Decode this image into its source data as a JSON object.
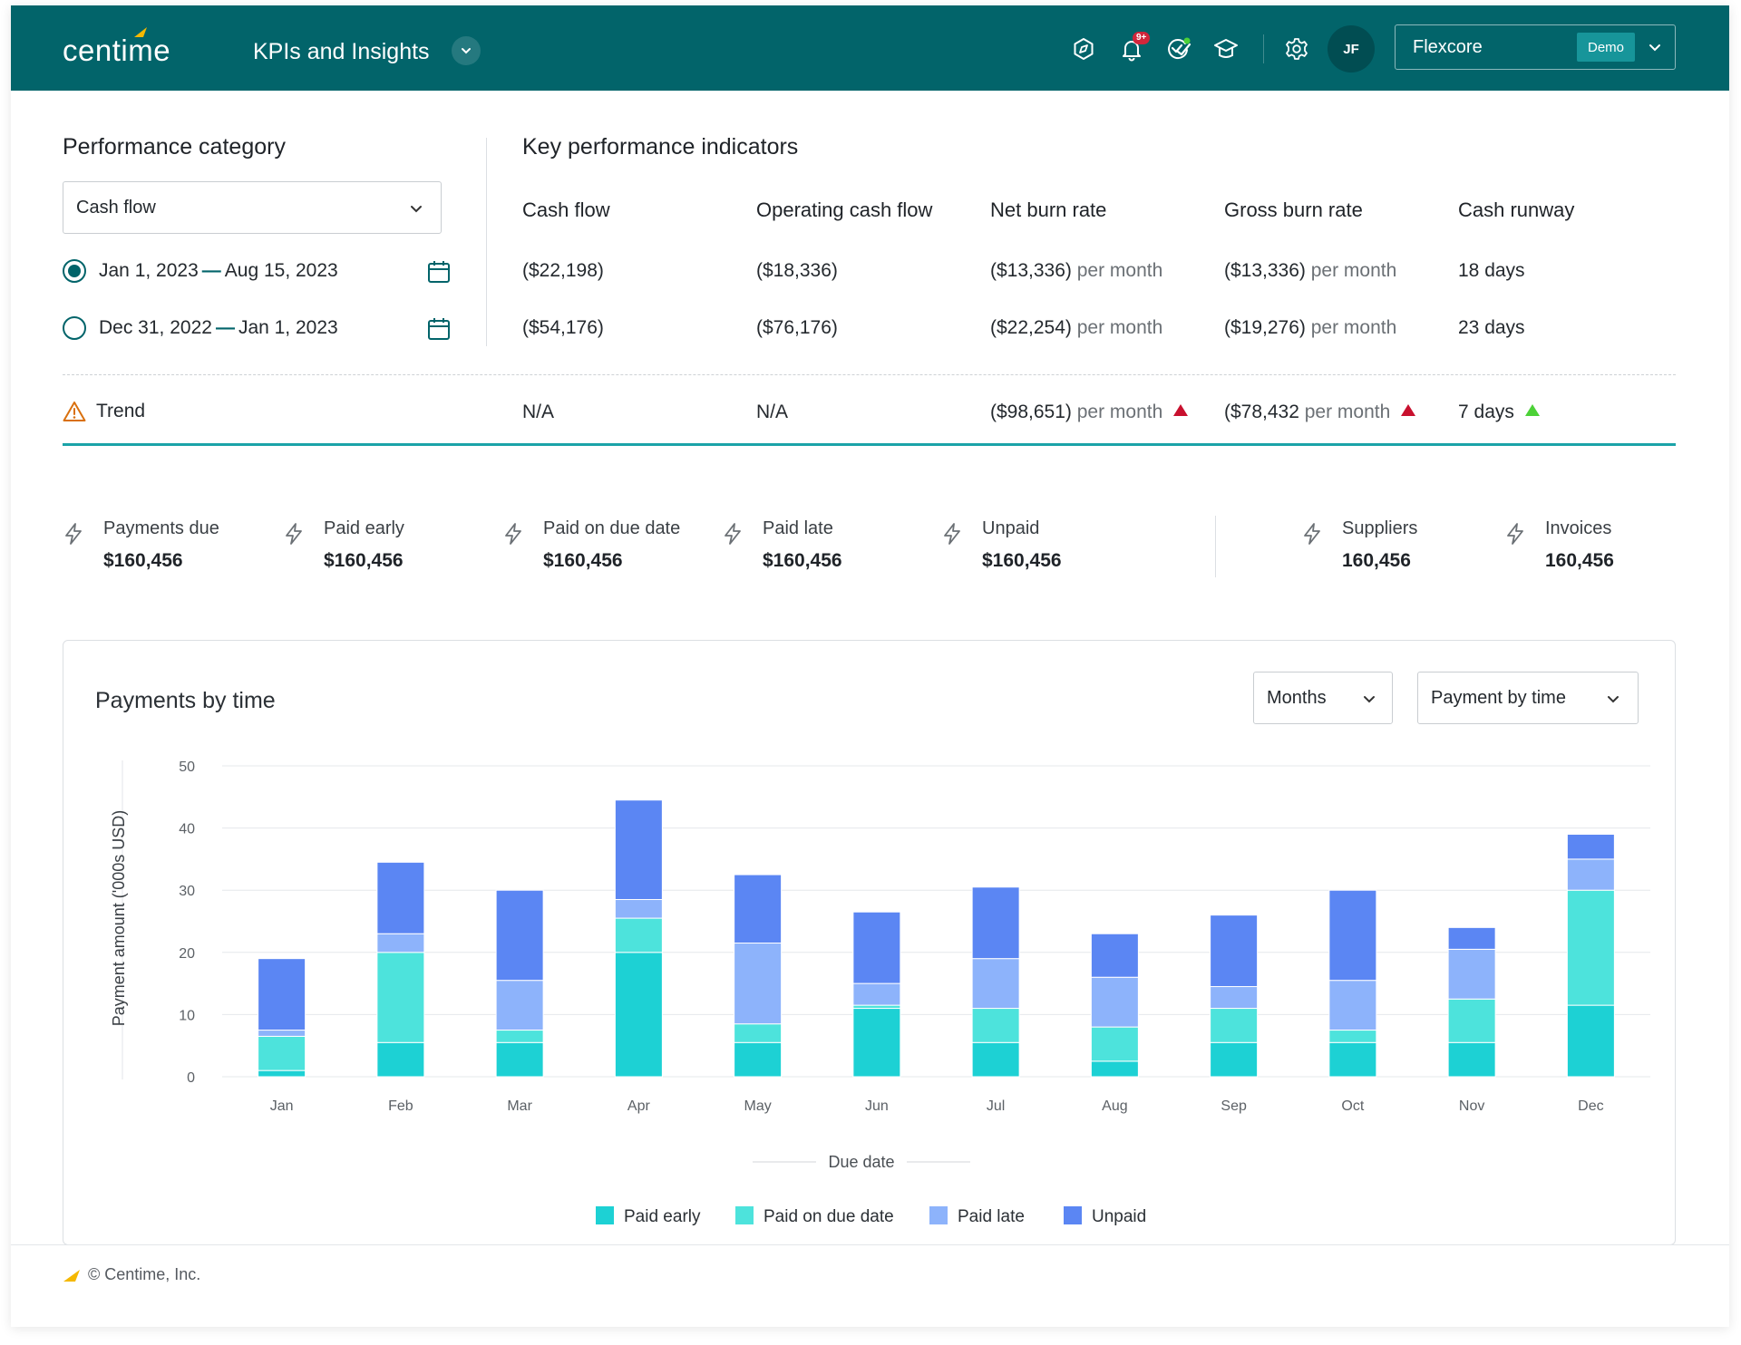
{
  "header": {
    "logo_text": "centime",
    "module_title": "KPIs and Insights",
    "notification_badge": "9+",
    "avatar_initials": "JF",
    "company_name": "Flexcore",
    "company_badge": "Demo",
    "brand_color": "#02646a",
    "accent_color": "#f5b800"
  },
  "performance": {
    "title": "Performance category",
    "category_value": "Cash flow",
    "periods": [
      {
        "start": "Jan 1, 2023",
        "end": "Aug 15, 2023",
        "selected": true
      },
      {
        "start": "Dec 31, 2022",
        "end": "Jan 1, 2023",
        "selected": false
      }
    ],
    "dash": "—"
  },
  "kpi": {
    "title": "Key performance indicators",
    "columns": [
      "Cash flow",
      "Operating cash flow",
      "Net burn rate",
      "Gross burn rate",
      "Cash runway"
    ],
    "rows": [
      [
        "($22,198)",
        "($18,336)",
        "($13,336)",
        "($13,336)",
        "18 days"
      ],
      [
        "($54,176)",
        "($76,176)",
        "($22,254)",
        "($19,276)",
        "23 days"
      ]
    ],
    "unit_per_month": "per month",
    "trend_label": "Trend",
    "trend": [
      "N/A",
      "N/A",
      "($98,651)",
      "($78,432",
      "7 days"
    ],
    "trend_colors": {
      "up_bad": "#c8102e",
      "up_good": "#4cd137"
    }
  },
  "stats": [
    {
      "label": "Payments due",
      "value": "$160,456"
    },
    {
      "label": "Paid early",
      "value": "$160,456"
    },
    {
      "label": "Paid on due date",
      "value": "$160,456"
    },
    {
      "label": "Paid late",
      "value": "$160,456"
    },
    {
      "label": "Unpaid",
      "value": "$160,456"
    },
    {
      "label": "Suppliers",
      "value": "160,456"
    },
    {
      "label": "Invoices",
      "value": "160,456"
    }
  ],
  "chart_card": {
    "title": "Payments by time",
    "period_select": "Months",
    "view_select": "Payment by time"
  },
  "chart_data": {
    "type": "bar",
    "stacked": true,
    "categories": [
      "Jan",
      "Feb",
      "Mar",
      "Apr",
      "May",
      "Jun",
      "Jul",
      "Aug",
      "Sep",
      "Oct",
      "Nov",
      "Dec"
    ],
    "series": [
      {
        "name": "Paid early",
        "color": "#1dd1d4",
        "values": [
          1,
          5.5,
          5.5,
          20,
          5.5,
          11,
          5.5,
          2.5,
          5.5,
          5.5,
          5.5,
          11.5
        ]
      },
      {
        "name": "Paid on due date",
        "color": "#4de3dc",
        "values": [
          5.5,
          14.5,
          2,
          5.5,
          3,
          0.5,
          5.5,
          5.5,
          5.5,
          2,
          7,
          18.5
        ]
      },
      {
        "name": "Paid late",
        "color": "#8db3fb",
        "values": [
          1,
          3,
          8,
          3,
          13,
          3.5,
          8,
          8,
          3.5,
          8,
          8,
          5
        ]
      },
      {
        "name": "Unpaid",
        "color": "#5b86f3",
        "values": [
          11.5,
          11.5,
          14.5,
          16,
          11,
          11.5,
          11.5,
          7,
          11.5,
          14.5,
          3.5,
          4
        ]
      }
    ],
    "ylabel": "Payment amount ('000s USD)",
    "xlabel": "Due date",
    "ylim": [
      0,
      50
    ],
    "yticks": [
      0,
      10,
      20,
      30,
      40,
      50
    ],
    "grid": true,
    "legend": "bottom-center"
  },
  "footer": {
    "copyright": "© Centime, Inc."
  }
}
